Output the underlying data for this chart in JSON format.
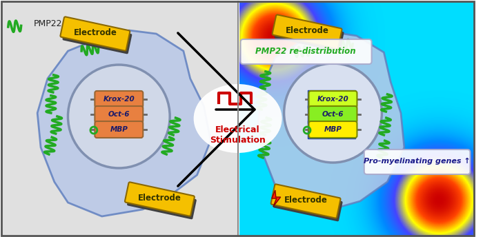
{
  "fig_width": 7.0,
  "fig_height": 3.44,
  "dpi": 100,
  "bg_color": "#ffffff",
  "border_color": "#555555",
  "left_panel": {
    "bg_color": "#e8e8e8",
    "cell_body_color": "#b8c8e8",
    "cell_body_edge": "#6080c0",
    "nucleus_color": "#d0d8e8",
    "nucleus_edge": "#8090b0",
    "electrode_color": "#f5c000",
    "electrode_edge": "#c09000",
    "electrode_shadow": "#404040",
    "gene_colors": [
      "#e8803a",
      "#e8803a",
      "#e8803a"
    ],
    "gene_labels": [
      "Krox-20",
      "Oct-6",
      "MBP"
    ],
    "pmp22_color": "#22aa22",
    "electrode_label": "Electrode",
    "electrode_label_color": "#333300"
  },
  "right_panel": {
    "heatmap_colors": [
      "#00ffff",
      "#0088ff",
      "#ff4400",
      "#ffff00",
      "#ff0000"
    ],
    "cell_body_color": "#b8c8e8",
    "cell_body_edge": "#6080c0",
    "nucleus_color": "#d8e0f0",
    "nucleus_edge": "#8090b0",
    "electrode_color": "#f5c000",
    "electrode_edge": "#c09000",
    "electrode_shadow": "#404040",
    "gene_colors": [
      "#ccff00",
      "#88ff00",
      "#ffff00"
    ],
    "gene_labels": [
      "Krox-20",
      "Oct-6",
      "MBP"
    ],
    "gene_arrow_color": "#aadd00",
    "pmp22_label": "PMP22 re-distribution",
    "pmp22_label_color": "#22aa22",
    "pro_myelin_label": "Pro-myelinating genes ↑",
    "pro_myelin_color": "#1a1a8a",
    "electrode_label": "Electrode",
    "electrode_label_color": "#333300",
    "lightning_color": "#ff2200"
  },
  "arrow_label": "Electrical\nStimulation",
  "arrow_color": "#cc0000",
  "arrow_pulse_color": "#cc0000",
  "pmp22_legend_color": "#22aa22",
  "pmp22_legend_label": "PMP22"
}
